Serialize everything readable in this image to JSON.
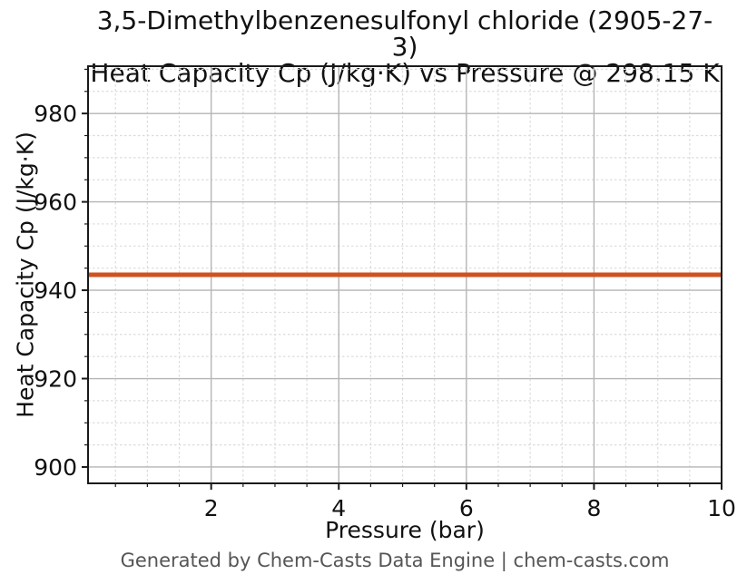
{
  "figure": {
    "footer": "Generated by Chem-Casts Data Engine | chem-casts.com"
  },
  "chart_data": {
    "type": "line",
    "title_lines": [
      "3,5-Dimethylbenzenesulfonyl chloride (2905-27-3)",
      "Heat Capacity Cp (J/kg·K) vs Pressure @ 298.15 K"
    ],
    "compound": "3,5-Dimethylbenzenesulfonyl chloride",
    "cas_number": "2905-27-3",
    "temperature": "298.15 K",
    "xlabel": "Pressure (bar)",
    "ylabel": "Heat Capacity Cp (J/kg·K)",
    "xlim": [
      0.07,
      10.0
    ],
    "ylim": [
      896.3,
      990.7
    ],
    "xticks": [
      2,
      4,
      6,
      8,
      10
    ],
    "xtick_labels": [
      "2",
      "4",
      "6",
      "8",
      "10"
    ],
    "yticks": [
      900,
      920,
      940,
      960,
      980
    ],
    "ytick_labels": [
      "900",
      "920",
      "940",
      "960",
      "980"
    ],
    "x_minor_step": 0.5,
    "y_minor_step": 5,
    "grid": {
      "major": true,
      "minor": true
    },
    "legend": "none",
    "series": [
      {
        "name": "Heat Capacity Cp",
        "color": "#d0521f",
        "line_width": 5,
        "x": [
          0.07,
          10.0
        ],
        "y": [
          943.5,
          943.5
        ],
        "constant_value": 943.5
      }
    ],
    "colors": {
      "text": "#111111",
      "footer_text": "#555555",
      "axis": "#1a1a1a",
      "major_grid": "#b5b5b5",
      "minor_grid": "#dcdcdc",
      "background": "#ffffff"
    }
  }
}
